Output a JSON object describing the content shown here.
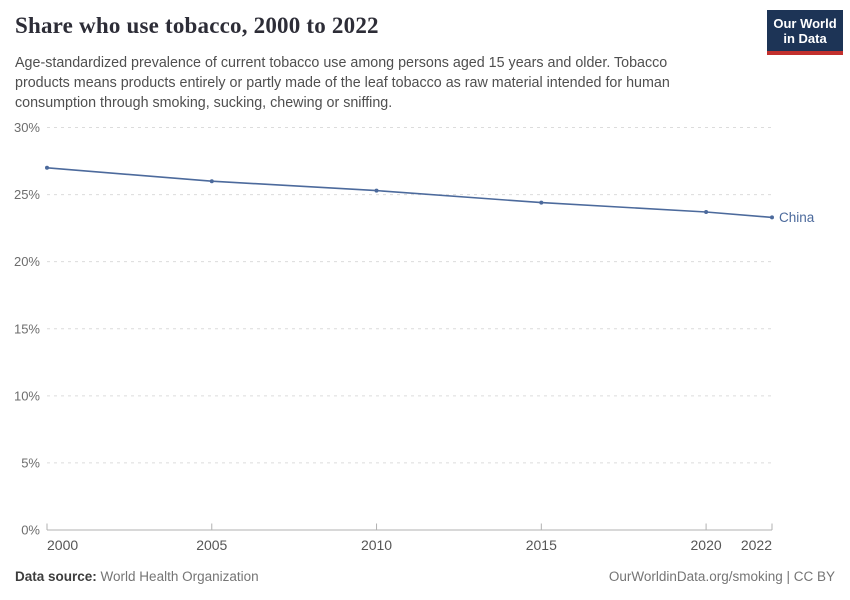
{
  "header": {
    "title": "Share who use tobacco, 2000 to 2022",
    "subtitle": "Age-standardized prevalence of current tobacco use among persons aged 15 years and older. Tobacco products means products entirely or partly made of the leaf tobacco as raw material intended for human consumption through smoking, sucking, chewing or sniffing.",
    "logo": {
      "lines": [
        "Our World",
        "in Data"
      ],
      "bg_color": "#1d3456",
      "stripe_color": "#c2302d"
    }
  },
  "chart_data": {
    "type": "line",
    "title": "Share who use tobacco, 2000 to 2022",
    "xlabel": "",
    "ylabel": "",
    "xlim": [
      2000,
      2022
    ],
    "ylim": [
      0,
      30
    ],
    "x_ticks": [
      2000,
      2005,
      2010,
      2015,
      2020,
      2022
    ],
    "y_ticks": [
      0,
      5,
      10,
      15,
      20,
      25,
      30
    ],
    "y_tick_suffix": "%",
    "grid": "dashed-horizontal",
    "legend_position": "end-of-line-label",
    "series": [
      {
        "name": "China",
        "color": "#4c6a9c",
        "x": [
          2000,
          2005,
          2010,
          2015,
          2020,
          2022
        ],
        "values": [
          27.0,
          26.0,
          25.3,
          24.4,
          23.7,
          23.3
        ]
      }
    ]
  },
  "footer": {
    "source_label": "Data source:",
    "source": "World Health Organization",
    "attribution": "OurWorldinData.org/smoking | CC BY"
  }
}
